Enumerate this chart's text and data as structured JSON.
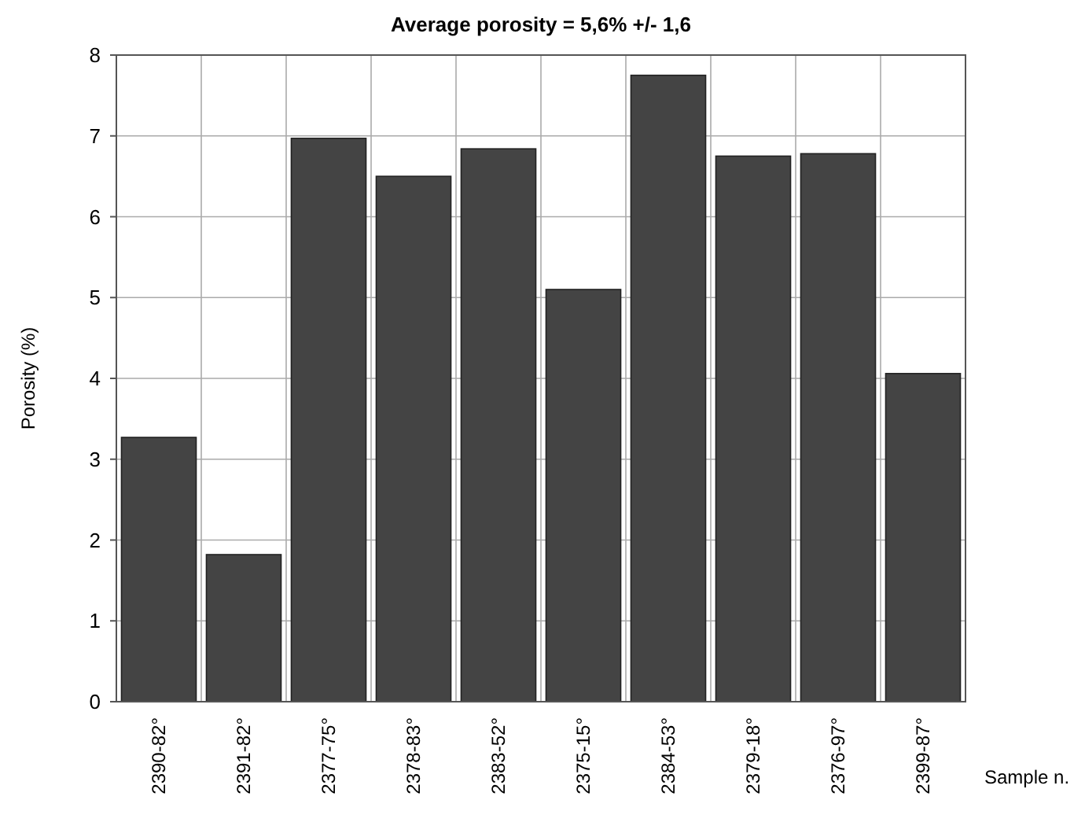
{
  "chart_data": {
    "type": "bar",
    "title": "Average porosity = 5,6% +/- 1,6",
    "xlabel": "Sample n.",
    "ylabel": "Porosity (%)",
    "categories": [
      "2390-82°",
      "2391-82°",
      "2377-75°",
      "2378-83°",
      "2383-52°",
      "2375-15°",
      "2384-53°",
      "2379-18°",
      "2376-97°",
      "2399-87°"
    ],
    "values": [
      3.27,
      1.82,
      6.97,
      6.5,
      6.84,
      5.1,
      7.75,
      6.75,
      6.78,
      4.06
    ],
    "color": "#444444",
    "ylim": [
      0,
      8
    ],
    "yticks": [
      0,
      1,
      2,
      3,
      4,
      5,
      6,
      7,
      8
    ],
    "grid": true
  }
}
